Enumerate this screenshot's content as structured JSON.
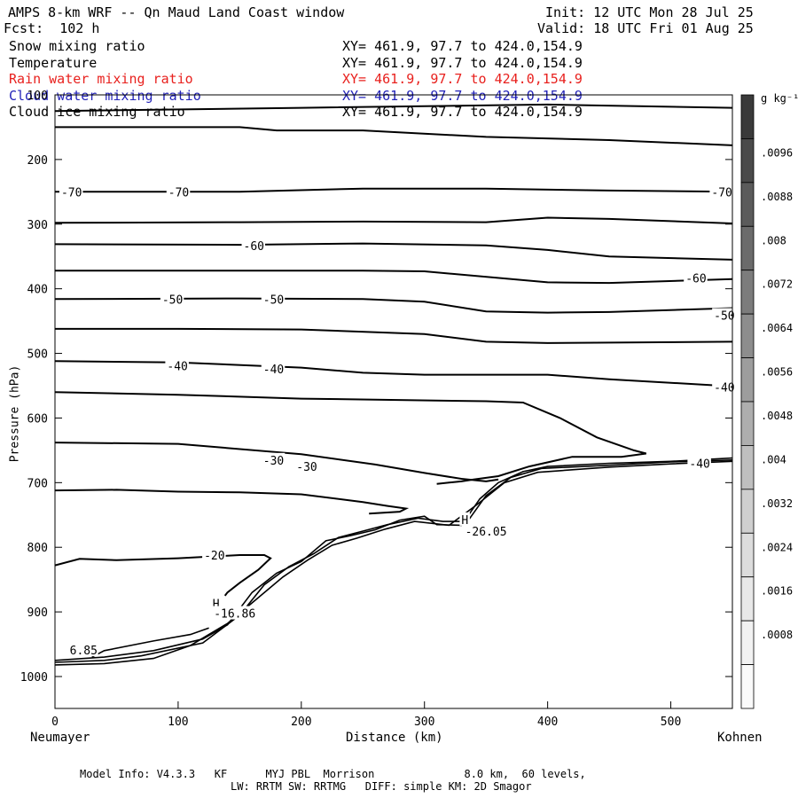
{
  "header": {
    "title": "AMPS 8-km WRF -- Qn Maud Land Coast window",
    "fcst": "Fcst:  102 h",
    "init": "Init: 12 UTC Mon 28 Jul 25",
    "valid": "Valid: 18 UTC Fri 01 Aug 25"
  },
  "fields": [
    {
      "name": "Snow mixing ratio",
      "xy": "XY= 461.9, 97.7 to 424.0,154.9",
      "color": "#000000"
    },
    {
      "name": "Temperature",
      "xy": "XY= 461.9, 97.7 to 424.0,154.9",
      "color": "#000000"
    },
    {
      "name": "Rain water mixing ratio",
      "xy": "XY= 461.9, 97.7 to 424.0,154.9",
      "color": "#e8211e"
    },
    {
      "name": "Cloud water mixing ratio",
      "xy": "XY= 461.9, 97.7 to 424.0,154.9",
      "color": "#2222b8"
    },
    {
      "name": "Cloud ice mixing ratio",
      "xy": "XY= 461.9, 97.7 to 424.0,154.9",
      "color": "#000000"
    }
  ],
  "footer": {
    "line1": "Model Info: V4.3.3   KF      MYJ PBL  Morrison              8.0 km,  60 levels,",
    "line2": "LW: RRTM SW: RRTMG   DIFF: simple KM: 2D Smagor"
  },
  "chart_data": {
    "type": "line",
    "xlabel": "Distance (km)",
    "ylabel": "Pressure (hPa)",
    "x_left_label": "Neumayer",
    "x_right_label": "Kohnen",
    "xlim": [
      0,
      550
    ],
    "ylim": [
      1050,
      100
    ],
    "xticks": [
      "0",
      "100",
      "200",
      "300",
      "400",
      "500"
    ],
    "yticks": [
      "100",
      "200",
      "300",
      "400",
      "500",
      "600",
      "700",
      "800",
      "900",
      "1000"
    ],
    "colorbar": {
      "units": "g kg⁻¹",
      "labels": [
        ".0096",
        ".0088",
        ".008",
        ".0072",
        ".0064",
        ".0056",
        ".0048",
        ".004",
        ".0032",
        ".0024",
        ".0016",
        ".0008"
      ],
      "shades": [
        "#3a3a3a",
        "#4a4a4a",
        "#5b5b5b",
        "#6b6b6b",
        "#7c7c7c",
        "#8d8d8d",
        "#9d9d9d",
        "#aeaeae",
        "#bfbfbf",
        "#cfcfcf",
        "#dcdcdc",
        "#e8e8e8",
        "#f2f2f2",
        "#fafafa"
      ]
    },
    "contour_labels": [
      {
        "text": "-70",
        "x": 5,
        "y": 250
      },
      {
        "text": "-70",
        "x": 92,
        "y": 250
      },
      {
        "text": "-70",
        "x": 533,
        "y": 250
      },
      {
        "text": "-60",
        "x": 153,
        "y": 333
      },
      {
        "text": "-60",
        "x": 512,
        "y": 383
      },
      {
        "text": "-50",
        "x": 87,
        "y": 416
      },
      {
        "text": "-50",
        "x": 169,
        "y": 416
      },
      {
        "text": "-50",
        "x": 535,
        "y": 441
      },
      {
        "text": "-40",
        "x": 91,
        "y": 519
      },
      {
        "text": "-40",
        "x": 169,
        "y": 524
      },
      {
        "text": "-40",
        "x": 535,
        "y": 552
      },
      {
        "text": "-40",
        "x": 515,
        "y": 670
      },
      {
        "text": "-30",
        "x": 169,
        "y": 665
      },
      {
        "text": "-30",
        "x": 196,
        "y": 675
      },
      {
        "text": "-20",
        "x": 121,
        "y": 812
      },
      {
        "text": "H",
        "x": 330,
        "y": 757
      },
      {
        "text": "-26.05",
        "x": 333,
        "y": 775
      },
      {
        "text": "H",
        "x": 128,
        "y": 887
      },
      {
        "text": "-16.86",
        "x": 129,
        "y": 902
      },
      {
        "text": "6.85",
        "x": 12,
        "y": 959
      }
    ],
    "isotherms": [
      [
        [
          0,
          125
        ],
        [
          200,
          120
        ],
        [
          400,
          115
        ],
        [
          550,
          120
        ]
      ],
      [
        [
          0,
          150
        ],
        [
          150,
          150
        ],
        [
          180,
          155
        ],
        [
          250,
          155
        ],
        [
          350,
          165
        ],
        [
          450,
          170
        ],
        [
          550,
          178
        ]
      ],
      [
        [
          0,
          250
        ],
        [
          150,
          250
        ],
        [
          250,
          245
        ],
        [
          350,
          245
        ],
        [
          450,
          248
        ],
        [
          550,
          250
        ]
      ],
      [
        [
          0,
          298
        ],
        [
          150,
          297
        ],
        [
          250,
          296
        ],
        [
          350,
          297
        ],
        [
          400,
          290
        ],
        [
          450,
          292
        ],
        [
          550,
          299
        ]
      ],
      [
        [
          0,
          331
        ],
        [
          150,
          332
        ],
        [
          250,
          330
        ],
        [
          350,
          333
        ],
        [
          400,
          340
        ],
        [
          450,
          350
        ],
        [
          550,
          355
        ]
      ],
      [
        [
          0,
          372
        ],
        [
          150,
          372
        ],
        [
          250,
          372
        ],
        [
          300,
          373
        ],
        [
          400,
          390
        ],
        [
          450,
          391
        ],
        [
          550,
          385
        ]
      ],
      [
        [
          0,
          416
        ],
        [
          150,
          415
        ],
        [
          250,
          416
        ],
        [
          300,
          420
        ],
        [
          350,
          435
        ],
        [
          400,
          437
        ],
        [
          450,
          436
        ],
        [
          550,
          430
        ]
      ],
      [
        [
          0,
          462
        ],
        [
          100,
          462
        ],
        [
          200,
          463
        ],
        [
          300,
          470
        ],
        [
          350,
          482
        ],
        [
          400,
          484
        ],
        [
          550,
          482
        ]
      ],
      [
        [
          0,
          512
        ],
        [
          100,
          514
        ],
        [
          200,
          522
        ],
        [
          250,
          530
        ],
        [
          300,
          533
        ],
        [
          400,
          533
        ],
        [
          450,
          540
        ],
        [
          550,
          551
        ]
      ],
      [
        [
          0,
          560
        ],
        [
          100,
          564
        ],
        [
          200,
          570
        ],
        [
          350,
          574
        ],
        [
          380,
          576
        ],
        [
          410,
          600
        ],
        [
          440,
          630
        ],
        [
          470,
          650
        ],
        [
          480,
          655
        ],
        [
          460,
          660
        ],
        [
          420,
          660
        ],
        [
          385,
          675
        ],
        [
          360,
          690
        ],
        [
          340,
          695
        ],
        [
          330,
          698
        ],
        [
          320,
          700
        ],
        [
          310,
          702
        ]
      ],
      [
        [
          0,
          638
        ],
        [
          100,
          640
        ],
        [
          200,
          656
        ],
        [
          260,
          672
        ],
        [
          300,
          685
        ],
        [
          330,
          694
        ],
        [
          350,
          698
        ],
        [
          360,
          695
        ]
      ],
      [
        [
          0,
          712
        ],
        [
          50,
          711
        ],
        [
          100,
          714
        ],
        [
          150,
          715
        ],
        [
          200,
          718
        ],
        [
          250,
          730
        ],
        [
          270,
          736
        ],
        [
          285,
          740
        ],
        [
          280,
          745
        ],
        [
          255,
          748
        ]
      ],
      [
        [
          0,
          828
        ],
        [
          20,
          818
        ],
        [
          50,
          820
        ],
        [
          100,
          817
        ],
        [
          150,
          812
        ],
        [
          170,
          812
        ],
        [
          175,
          817
        ],
        [
          165,
          835
        ],
        [
          150,
          855
        ],
        [
          140,
          870
        ],
        [
          138,
          875
        ]
      ]
    ],
    "terrain": [
      [
        [
          0,
          975
        ],
        [
          40,
          970
        ],
        [
          80,
          960
        ],
        [
          120,
          942
        ],
        [
          140,
          920
        ],
        [
          160,
          870
        ],
        [
          180,
          840
        ],
        [
          200,
          822
        ],
        [
          220,
          790
        ],
        [
          240,
          782
        ],
        [
          260,
          773
        ],
        [
          280,
          758
        ],
        [
          300,
          752
        ],
        [
          310,
          765
        ],
        [
          330,
          766
        ],
        [
          345,
          725
        ],
        [
          360,
          700
        ],
        [
          380,
          683
        ],
        [
          400,
          675
        ],
        [
          450,
          670
        ],
        [
          500,
          667
        ],
        [
          550,
          662
        ]
      ],
      [
        [
          0,
          978
        ],
        [
          40,
          975
        ],
        [
          70,
          968
        ],
        [
          120,
          948
        ],
        [
          150,
          905
        ],
        [
          170,
          858
        ],
        [
          190,
          830
        ],
        [
          210,
          810
        ],
        [
          230,
          785
        ],
        [
          250,
          775
        ],
        [
          270,
          765
        ],
        [
          295,
          755
        ],
        [
          315,
          760
        ],
        [
          335,
          760
        ],
        [
          350,
          720
        ],
        [
          370,
          692
        ],
        [
          395,
          678
        ],
        [
          450,
          673
        ],
        [
          500,
          668
        ],
        [
          550,
          665
        ]
      ],
      [
        [
          0,
          982
        ],
        [
          40,
          980
        ],
        [
          80,
          972
        ],
        [
          110,
          952
        ],
        [
          140,
          918
        ],
        [
          165,
          878
        ],
        [
          185,
          846
        ],
        [
          205,
          820
        ],
        [
          225,
          797
        ],
        [
          245,
          786
        ],
        [
          268,
          772
        ],
        [
          292,
          760
        ],
        [
          320,
          766
        ],
        [
          342,
          735
        ],
        [
          365,
          700
        ],
        [
          392,
          684
        ],
        [
          450,
          676
        ],
        [
          500,
          671
        ],
        [
          550,
          667
        ]
      ],
      [
        [
          30,
          970
        ],
        [
          40,
          960
        ],
        [
          80,
          945
        ],
        [
          110,
          935
        ],
        [
          125,
          925
        ]
      ]
    ]
  }
}
